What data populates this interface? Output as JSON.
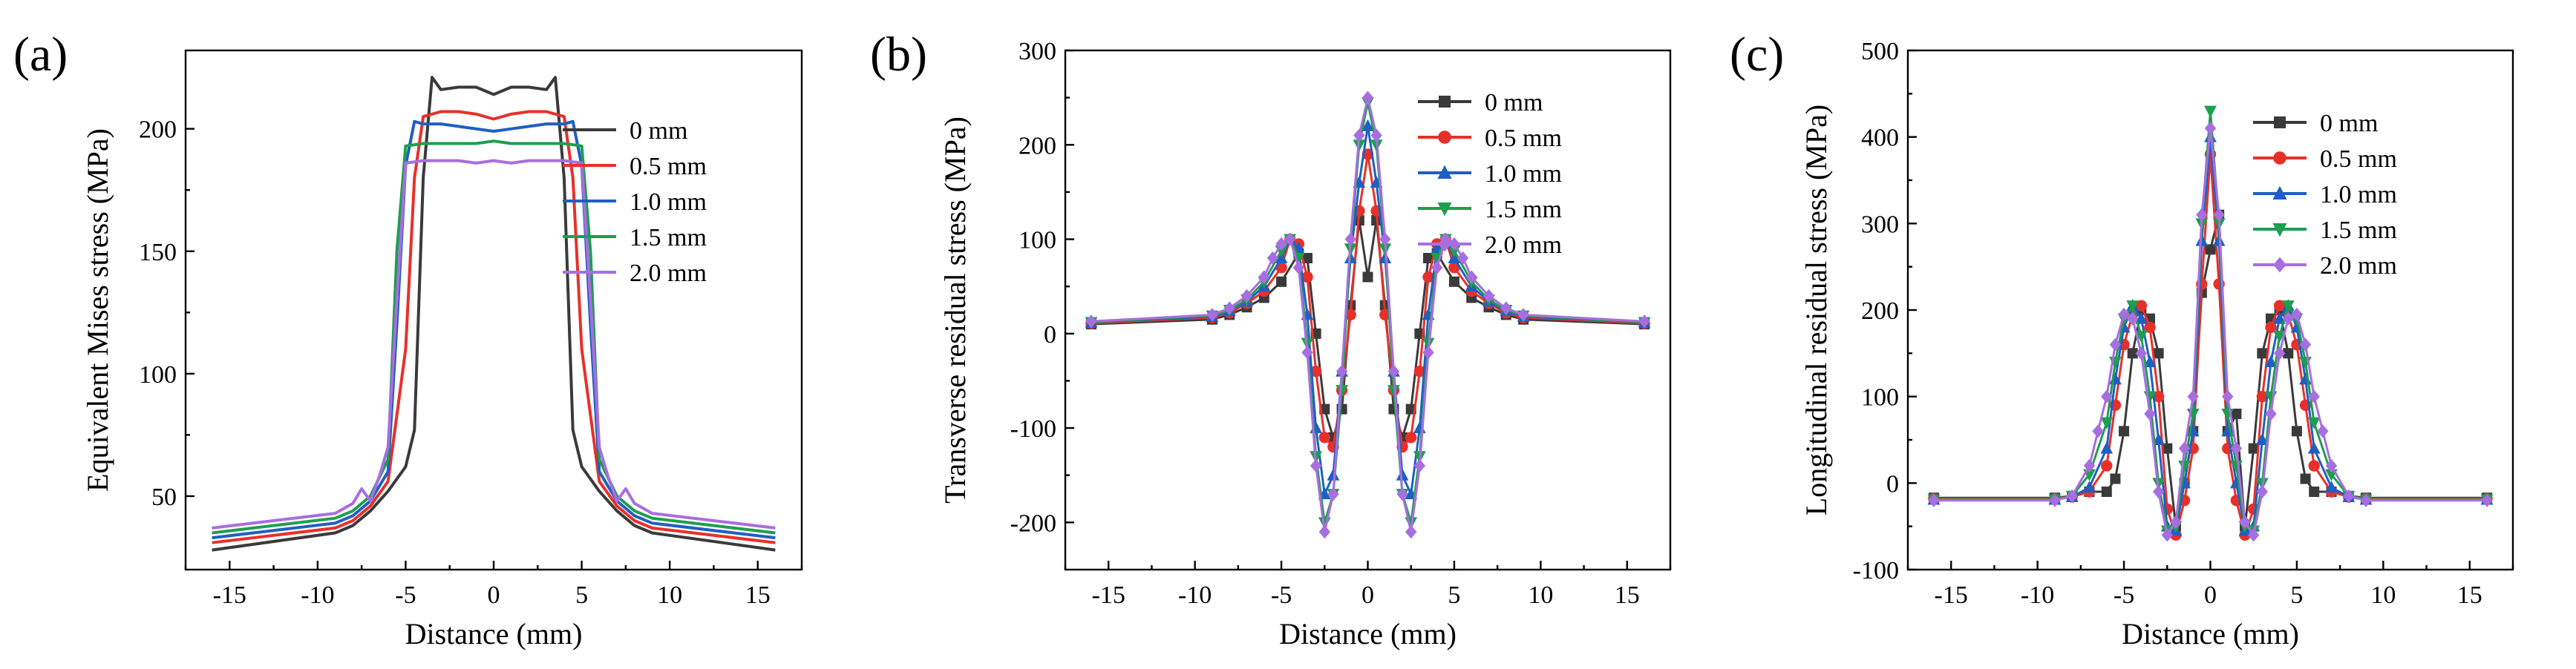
{
  "chart_data": [
    {
      "panel_label": "(a)",
      "type": "line",
      "markers": false,
      "title": "",
      "xlabel": "Distance (mm)",
      "ylabel": "Equivalent Mises stress (MPa)",
      "xlim": [
        -17.5,
        17.5
      ],
      "ylim": [
        20,
        232
      ],
      "xticks": [
        -15,
        -10,
        -5,
        0,
        5,
        10,
        15
      ],
      "yticks": [
        50,
        100,
        150,
        200
      ],
      "xtick_labels": [
        "-15",
        "-10",
        "-5",
        "0",
        "5",
        "10",
        "15"
      ],
      "ytick_labels": [
        "50",
        "100",
        "150",
        "200"
      ],
      "legend_position": "top-right",
      "series": [
        {
          "name": "0 mm",
          "color": "#3a3a3a",
          "marker": "none",
          "x": [
            -16,
            -9,
            -8,
            -7,
            -6,
            -5,
            -4.5,
            -4,
            -3.5,
            -3,
            -2,
            -1,
            0,
            1,
            2,
            3,
            3.5,
            4,
            4.5,
            5,
            6,
            7,
            8,
            9,
            16
          ],
          "y": [
            28,
            35,
            38,
            44,
            52,
            62,
            77,
            180,
            221,
            216,
            217,
            217,
            214,
            217,
            217,
            216,
            221,
            180,
            77,
            62,
            52,
            44,
            38,
            35,
            28
          ]
        },
        {
          "name": "0.5 mm",
          "color": "#e8302a",
          "marker": "none",
          "x": [
            -16,
            -9,
            -8,
            -7,
            -6,
            -5,
            -4.5,
            -4,
            -3,
            -2,
            -1,
            0,
            1,
            2,
            3,
            4,
            4.5,
            5,
            6,
            7,
            8,
            9,
            16
          ],
          "y": [
            31,
            37,
            40,
            46,
            56,
            110,
            180,
            205,
            207,
            207,
            206,
            204,
            206,
            207,
            207,
            205,
            180,
            110,
            56,
            46,
            40,
            37,
            31
          ]
        },
        {
          "name": "1.0 mm",
          "color": "#1f5fc4",
          "marker": "none",
          "x": [
            -16,
            -9,
            -8,
            -7,
            -6,
            -5.5,
            -5,
            -4.5,
            -4,
            -3,
            -2,
            -1,
            0,
            1,
            2,
            3,
            4,
            4.5,
            5,
            5.5,
            6,
            7,
            8,
            9,
            16
          ],
          "y": [
            33,
            39,
            42,
            48,
            60,
            120,
            185,
            203,
            202,
            202,
            201,
            200,
            199,
            200,
            201,
            202,
            202,
            203,
            185,
            120,
            60,
            48,
            42,
            39,
            33
          ]
        },
        {
          "name": "1.5 mm",
          "color": "#1e9e4f",
          "marker": "none",
          "x": [
            -16,
            -9,
            -8,
            -7,
            -6,
            -5.5,
            -5,
            -4,
            -3,
            -2,
            -1,
            0,
            1,
            2,
            3,
            4,
            5,
            5.5,
            6,
            7,
            8,
            9,
            16
          ],
          "y": [
            35,
            41,
            44,
            50,
            65,
            150,
            193,
            194,
            194,
            194,
            194,
            195,
            194,
            194,
            194,
            194,
            193,
            150,
            65,
            50,
            44,
            41,
            35
          ]
        },
        {
          "name": "2.0 mm",
          "color": "#a86ee0",
          "marker": "none",
          "x": [
            -16,
            -9,
            -8,
            -7.5,
            -7,
            -6.5,
            -6,
            -5.5,
            -5,
            -4,
            -3,
            -2,
            -1,
            0,
            1,
            2,
            3,
            4,
            5,
            5.5,
            6,
            6.5,
            7,
            7.5,
            8,
            9,
            16
          ],
          "y": [
            37,
            43,
            47,
            53,
            48,
            58,
            70,
            130,
            186,
            187,
            187,
            187,
            186,
            187,
            186,
            187,
            187,
            187,
            186,
            130,
            70,
            58,
            48,
            53,
            47,
            43,
            37
          ]
        }
      ]
    },
    {
      "panel_label": "(b)",
      "type": "line",
      "markers": true,
      "title": "",
      "xlabel": "Distance (mm)",
      "ylabel": "Transverse residual stress (MPa)",
      "xlim": [
        -17.5,
        17.5
      ],
      "ylim": [
        -250,
        300
      ],
      "xticks": [
        -15,
        -10,
        -5,
        0,
        5,
        10,
        15
      ],
      "yticks": [
        -200,
        -100,
        0,
        100,
        200,
        300
      ],
      "xtick_labels": [
        "-15",
        "-10",
        "-5",
        "0",
        "5",
        "10",
        "15"
      ],
      "ytick_labels": [
        "-200",
        "-100",
        "0",
        "100",
        "200",
        "300"
      ],
      "legend_position": "top-right",
      "series": [
        {
          "name": "0 mm",
          "color": "#3a3a3a",
          "marker": "square",
          "x": [
            -16,
            -9,
            -8,
            -7,
            -6,
            -5,
            -4,
            -3.5,
            -3,
            -2.5,
            -2,
            -1.5,
            -1,
            -0.5,
            0,
            0.5,
            1,
            1.5,
            2,
            2.5,
            3,
            3.5,
            4,
            5,
            6,
            7,
            8,
            9,
            16
          ],
          "y": [
            10,
            15,
            20,
            28,
            38,
            55,
            85,
            80,
            0,
            -80,
            -110,
            -80,
            30,
            120,
            60,
            120,
            30,
            -80,
            -110,
            -80,
            0,
            80,
            85,
            55,
            38,
            28,
            20,
            15,
            10
          ]
        },
        {
          "name": "0.5 mm",
          "color": "#e8302a",
          "marker": "circle",
          "x": [
            -16,
            -9,
            -8,
            -7,
            -6,
            -5,
            -4.5,
            -4,
            -3.5,
            -3,
            -2.5,
            -2,
            -1.5,
            -1,
            -0.5,
            0,
            0.5,
            1,
            1.5,
            2,
            2.5,
            3,
            3.5,
            4,
            4.5,
            5,
            6,
            7,
            8,
            9,
            16
          ],
          "y": [
            11,
            17,
            22,
            32,
            45,
            70,
            100,
            95,
            60,
            -40,
            -110,
            -120,
            -60,
            20,
            130,
            190,
            130,
            20,
            -60,
            -120,
            -110,
            -40,
            60,
            95,
            100,
            70,
            45,
            32,
            22,
            17,
            11
          ]
        },
        {
          "name": "1.0 mm",
          "color": "#1f5fc4",
          "marker": "triangle-up",
          "x": [
            -16,
            -9,
            -8,
            -7,
            -6,
            -5,
            -4.5,
            -4,
            -3.5,
            -3,
            -2.5,
            -2,
            -1.5,
            -1,
            -0.5,
            0,
            0.5,
            1,
            1.5,
            2,
            2.5,
            3,
            3.5,
            4,
            4.5,
            5,
            6,
            7,
            8,
            9,
            16
          ],
          "y": [
            12,
            18,
            24,
            34,
            50,
            80,
            100,
            90,
            20,
            -100,
            -170,
            -150,
            -40,
            80,
            160,
            220,
            160,
            80,
            -40,
            -150,
            -170,
            -100,
            20,
            90,
            100,
            80,
            50,
            34,
            24,
            18,
            12
          ]
        },
        {
          "name": "1.5 mm",
          "color": "#1e9e4f",
          "marker": "triangle-down",
          "x": [
            -16,
            -9,
            -8,
            -7,
            -6,
            -5,
            -4.5,
            -4,
            -3.5,
            -3,
            -2.5,
            -2,
            -1.5,
            -1,
            -0.5,
            0,
            0.5,
            1,
            1.5,
            2,
            2.5,
            3,
            3.5,
            4,
            4.5,
            5,
            6,
            7,
            8,
            9,
            16
          ],
          "y": [
            12,
            19,
            25,
            36,
            55,
            88,
            100,
            80,
            -10,
            -130,
            -200,
            -170,
            -60,
            90,
            200,
            245,
            200,
            90,
            -60,
            -170,
            -200,
            -130,
            -10,
            80,
            100,
            88,
            55,
            36,
            25,
            19,
            12
          ]
        },
        {
          "name": "2.0 mm",
          "color": "#a86ee0",
          "marker": "diamond",
          "x": [
            -16,
            -9,
            -8,
            -7,
            -6,
            -5.5,
            -5,
            -4.5,
            -4,
            -3.5,
            -3,
            -2.5,
            -2,
            -1.5,
            -1,
            -0.5,
            0,
            0.5,
            1,
            1.5,
            2,
            2.5,
            3,
            3.5,
            4,
            4.5,
            5,
            5.5,
            6,
            7,
            8,
            9,
            16
          ],
          "y": [
            13,
            20,
            27,
            40,
            60,
            80,
            95,
            100,
            70,
            -20,
            -140,
            -210,
            -170,
            -40,
            100,
            210,
            250,
            210,
            100,
            -40,
            -170,
            -210,
            -140,
            -20,
            70,
            100,
            95,
            80,
            60,
            40,
            27,
            20,
            13
          ]
        }
      ]
    },
    {
      "panel_label": "(c)",
      "type": "line",
      "markers": true,
      "title": "",
      "xlabel": "Distance (mm)",
      "ylabel": "Longitudinal residual stress (MPa)",
      "xlim": [
        -17.5,
        17.5
      ],
      "ylim": [
        -100,
        500
      ],
      "xticks": [
        -15,
        -10,
        -5,
        0,
        5,
        10,
        15
      ],
      "yticks": [
        -100,
        0,
        100,
        200,
        300,
        400,
        500
      ],
      "xtick_labels": [
        "-15",
        "-10",
        "-5",
        "0",
        "5",
        "10",
        "15"
      ],
      "ytick_labels": [
        "-100",
        "0",
        "100",
        "200",
        "300",
        "400",
        "500"
      ],
      "legend_position": "top-right",
      "series": [
        {
          "name": "0 mm",
          "color": "#3a3a3a",
          "marker": "square",
          "x": [
            -16,
            -9,
            -8,
            -7,
            -6,
            -5.5,
            -5,
            -4.5,
            -4,
            -3.5,
            -3,
            -2.5,
            -2,
            -1.5,
            -1,
            -0.5,
            0,
            0.5,
            1,
            1.5,
            2,
            2.5,
            3,
            3.5,
            4,
            4.5,
            5,
            5.5,
            6,
            7,
            8,
            9,
            16
          ],
          "y": [
            -17,
            -17,
            -15,
            -10,
            -10,
            5,
            60,
            150,
            200,
            190,
            150,
            40,
            -50,
            0,
            60,
            220,
            270,
            310,
            60,
            80,
            -50,
            40,
            150,
            190,
            200,
            150,
            60,
            5,
            -10,
            -10,
            -15,
            -17,
            -17
          ]
        },
        {
          "name": "0.5 mm",
          "color": "#e8302a",
          "marker": "circle",
          "x": [
            -16,
            -9,
            -8,
            -7,
            -6,
            -5.5,
            -5,
            -4.5,
            -4,
            -3.5,
            -3,
            -2.5,
            -2,
            -1.5,
            -1,
            -0.5,
            0,
            0.5,
            1,
            1.5,
            2,
            2.5,
            3,
            3.5,
            4,
            4.5,
            5,
            5.5,
            6,
            7,
            8,
            9,
            16
          ],
          "y": [
            -18,
            -18,
            -16,
            -10,
            20,
            90,
            160,
            195,
            205,
            180,
            100,
            -30,
            -60,
            -20,
            40,
            230,
            380,
            230,
            40,
            -20,
            -60,
            -30,
            100,
            180,
            205,
            195,
            160,
            90,
            20,
            -10,
            -16,
            -18,
            -18
          ]
        },
        {
          "name": "1.0 mm",
          "color": "#1f5fc4",
          "marker": "triangle-up",
          "x": [
            -16,
            -9,
            -8,
            -7,
            -6,
            -5.5,
            -5,
            -4.5,
            -4,
            -3.5,
            -3,
            -2.5,
            -2,
            -1.5,
            -1,
            -0.5,
            0,
            0.5,
            1,
            1.5,
            2,
            2.5,
            3,
            3.5,
            4,
            4.5,
            5,
            5.5,
            6,
            7,
            8,
            9,
            16
          ],
          "y": [
            -19,
            -19,
            -16,
            -5,
            40,
            120,
            180,
            205,
            190,
            140,
            50,
            -50,
            -55,
            0,
            60,
            280,
            400,
            280,
            60,
            0,
            -55,
            -50,
            50,
            140,
            190,
            205,
            180,
            120,
            40,
            -5,
            -16,
            -19,
            -19
          ]
        },
        {
          "name": "1.5 mm",
          "color": "#1e9e4f",
          "marker": "triangle-down",
          "x": [
            -16,
            -9,
            -8,
            -7,
            -6,
            -5.5,
            -5,
            -4.5,
            -4,
            -3.5,
            -3,
            -2.5,
            -2,
            -1.5,
            -1,
            -0.5,
            0,
            0.5,
            1,
            1.5,
            2,
            2.5,
            3,
            3.5,
            4,
            4.5,
            5,
            5.5,
            6,
            7,
            8,
            9,
            16
          ],
          "y": [
            -19,
            -19,
            -15,
            10,
            70,
            140,
            190,
            205,
            170,
            100,
            0,
            -55,
            -50,
            20,
            80,
            300,
            430,
            300,
            80,
            20,
            -50,
            -55,
            0,
            100,
            170,
            205,
            190,
            140,
            70,
            10,
            -15,
            -19,
            -19
          ]
        },
        {
          "name": "2.0 mm",
          "color": "#a86ee0",
          "marker": "diamond",
          "x": [
            -16,
            -9,
            -8,
            -7,
            -6.5,
            -6,
            -5.5,
            -5,
            -4.5,
            -4,
            -3.5,
            -3,
            -2.5,
            -2,
            -1.5,
            -1,
            -0.5,
            0,
            0.5,
            1,
            1.5,
            2,
            2.5,
            3,
            3.5,
            4,
            4.5,
            5,
            5.5,
            6,
            6.5,
            7,
            8,
            9,
            16
          ],
          "y": [
            -20,
            -20,
            -15,
            20,
            60,
            100,
            160,
            195,
            190,
            150,
            80,
            -10,
            -60,
            -45,
            40,
            100,
            310,
            410,
            310,
            100,
            40,
            -45,
            -60,
            -10,
            80,
            150,
            190,
            195,
            160,
            100,
            60,
            20,
            -15,
            -20,
            -20
          ]
        }
      ]
    }
  ]
}
